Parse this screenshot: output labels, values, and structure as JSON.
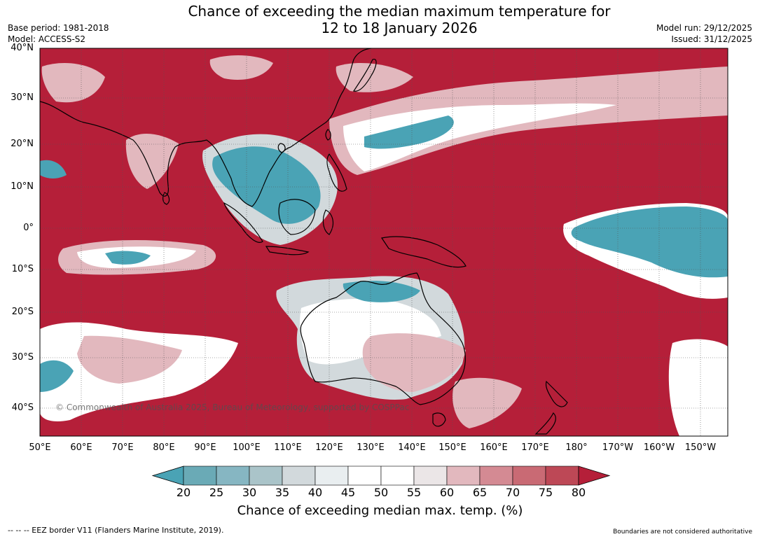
{
  "title_line1": "Chance of exceeding the median maximum temperature for",
  "title_line2": "12 to 18 January 2026",
  "base_period": "Base period: 1981-2018",
  "model": "Model: ACCESS-S2",
  "model_run": "Model run: 29/12/2025",
  "issued": "Issued: 31/12/2025",
  "lat_labels": [
    "40°N",
    "30°N",
    "20°N",
    "10°N",
    "0°",
    "10°S",
    "20°S",
    "30°S",
    "40°S"
  ],
  "lon_labels": [
    "50°E",
    "60°E",
    "70°E",
    "80°E",
    "90°E",
    "100°E",
    "110°E",
    "120°E",
    "130°E",
    "140°E",
    "150°E",
    "160°E",
    "170°E",
    "180°",
    "170°W",
    "160°W",
    "150°W"
  ],
  "watermark": "© Commonwealth of Australia 2025, Bureau of Meteorology, supported by COSPPac",
  "colorbar": {
    "ticks": [
      "20",
      "25",
      "30",
      "35",
      "40",
      "45",
      "50",
      "55",
      "60",
      "65",
      "70",
      "75",
      "80"
    ],
    "colors": [
      "#4aa3b5",
      "#6aaab6",
      "#86b6c2",
      "#aac4c9",
      "#d2d9dc",
      "#e9eef0",
      "#ffffff",
      "#ffffff",
      "#ebe6e7",
      "#e2b8be",
      "#d48a93",
      "#c96a74",
      "#bd4856",
      "#b51f39"
    ],
    "title": "Chance of exceeding median max. temp. (%)"
  },
  "map_colors": {
    "high": "#b51f39",
    "mid_high": "#c96a74",
    "light_red": "#e2b8be",
    "neutral": "#ffffff",
    "light_blue": "#d2d9dc",
    "blue": "#4aa3b5",
    "coast": "#000000"
  },
  "footer_left": "--  --  -- EEZ border V11 (Flanders Marine Institute, 2019).",
  "footer_right": "Boundaries are not considered authoritative"
}
